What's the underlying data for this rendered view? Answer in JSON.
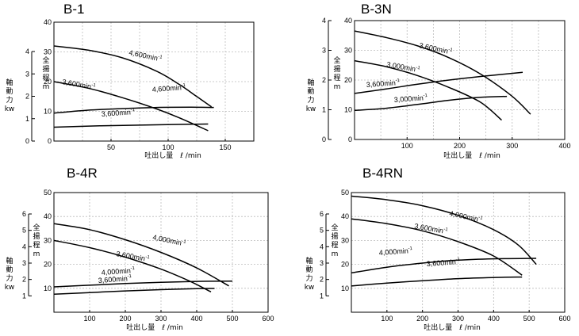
{
  "charts": [
    {
      "title": "B-1",
      "xlabel": "吐出し量　ℓ /min",
      "ylabel_head": [
        "全",
        "揚",
        "程",
        "m"
      ],
      "ylabel_power": [
        "軸",
        "動",
        "力",
        "kw"
      ],
      "x_ticks": [
        "50",
        "100",
        "150"
      ],
      "y_ticks": [
        "0",
        "10",
        "20",
        "30",
        "40"
      ],
      "p_ticks": [
        "0",
        "1",
        "2",
        "3",
        "4"
      ],
      "curves": [
        {
          "label": "4,600min",
          "sup": "-1"
        },
        {
          "label": "3,600min",
          "sup": "-1"
        },
        {
          "label": "4,600min",
          "sup": "-1"
        },
        {
          "label": "3,600min",
          "sup": "-1"
        }
      ]
    },
    {
      "title": "B-3N",
      "xlabel": "吐出し量　ℓ /min",
      "ylabel_head": [
        "全",
        "揚",
        "程",
        "m"
      ],
      "ylabel_power": [
        "軸",
        "動",
        "力",
        "kw"
      ],
      "x_ticks": [
        "100",
        "200",
        "300",
        "400"
      ],
      "y_ticks": [
        "0",
        "10",
        "20",
        "30",
        "40"
      ],
      "p_ticks": [
        "0",
        "1",
        "2",
        "3",
        "4"
      ],
      "curves": [
        {
          "label": "3,600min",
          "sup": "-1"
        },
        {
          "label": "3,000min",
          "sup": "-1"
        },
        {
          "label": "3,600min",
          "sup": "-1"
        },
        {
          "label": "3,000min",
          "sup": "-1"
        }
      ]
    },
    {
      "title": "B-4R",
      "xlabel": "吐出し量　ℓ /min",
      "ylabel_head": [
        "全",
        "揚",
        "程",
        "m"
      ],
      "ylabel_power": [
        "軸",
        "動",
        "力",
        "kw"
      ],
      "x_ticks": [
        "100",
        "200",
        "300",
        "400",
        "500",
        "600"
      ],
      "y_ticks": [
        "10",
        "20",
        "30",
        "40",
        "50"
      ],
      "p_ticks": [
        "1",
        "2",
        "3",
        "4",
        "5",
        "6"
      ],
      "curves": [
        {
          "label": "4,000min",
          "sup": "-1"
        },
        {
          "label": "3,600min",
          "sup": "-1"
        },
        {
          "label": "4,000min",
          "sup": "-1"
        },
        {
          "label": "3,600min",
          "sup": "-1"
        }
      ]
    },
    {
      "title": "B-4RN",
      "xlabel": "吐出し量　ℓ /min",
      "ylabel_head": [
        "全",
        "揚",
        "程",
        "m"
      ],
      "ylabel_power": [
        "軸",
        "動",
        "力",
        "kw"
      ],
      "x_ticks": [
        "100",
        "200",
        "300",
        "400",
        "500",
        "600"
      ],
      "y_ticks": [
        "10",
        "20",
        "30",
        "40",
        "50"
      ],
      "p_ticks": [
        "1",
        "2",
        "3",
        "4",
        "5",
        "6"
      ],
      "curves": [
        {
          "label": "4,000min",
          "sup": "-1"
        },
        {
          "label": "3,600min",
          "sup": "-1"
        },
        {
          "label": "4,000min",
          "sup": "-1"
        },
        {
          "label": "3,600min",
          "sup": "-1"
        }
      ]
    }
  ],
  "chart_data": [
    {
      "type": "line",
      "title": "B-1",
      "xlabel": "吐出し量　ℓ /min",
      "ylabel": "全揚程 m / 軸動力 kw",
      "xlim": [
        0,
        175
      ],
      "ylim": [
        0,
        40
      ],
      "ylim_power": [
        0,
        4
      ],
      "grid": true,
      "series": [
        {
          "name": "4,600min-1",
          "axis": "head",
          "x": [
            0,
            30,
            60,
            90,
            110,
            125,
            138
          ],
          "y": [
            32,
            30.6,
            28,
            23.5,
            19,
            15,
            11.5
          ]
        },
        {
          "name": "3,600min-1",
          "axis": "head",
          "x": [
            0,
            30,
            60,
            90,
            110,
            135
          ],
          "y": [
            20,
            17.8,
            14.6,
            10.8,
            7.8,
            3.5
          ]
        },
        {
          "name": "4,600min-1",
          "axis": "power",
          "x": [
            0,
            30,
            60,
            90,
            120,
            140
          ],
          "y": [
            1.25,
            1.38,
            1.45,
            1.5,
            1.51,
            1.5
          ]
        },
        {
          "name": "3,600min-1",
          "axis": "power",
          "x": [
            0,
            40,
            80,
            120,
            135
          ],
          "y": [
            0.62,
            0.68,
            0.72,
            0.75,
            0.76
          ]
        }
      ]
    },
    {
      "type": "line",
      "title": "B-3N",
      "xlabel": "吐出し量　ℓ /min",
      "ylabel": "全揚程 m / 軸動力 kw",
      "xlim": [
        0,
        400
      ],
      "ylim": [
        0,
        40
      ],
      "ylim_power": [
        0,
        4
      ],
      "grid": true,
      "series": [
        {
          "name": "3,600min-1",
          "axis": "head",
          "x": [
            0,
            60,
            120,
            180,
            240,
            300,
            335
          ],
          "y": [
            36.5,
            34.3,
            31.5,
            27.5,
            22,
            14.5,
            8.5
          ]
        },
        {
          "name": "3,000min-1",
          "axis": "head",
          "x": [
            0,
            60,
            120,
            180,
            240,
            280
          ],
          "y": [
            26.5,
            24.5,
            21.5,
            17.5,
            12.5,
            6.5
          ]
        },
        {
          "name": "3,600min-1",
          "axis": "power",
          "x": [
            0,
            60,
            120,
            180,
            240,
            320
          ],
          "y": [
            1.55,
            1.7,
            1.86,
            2.0,
            2.12,
            2.26
          ]
        },
        {
          "name": "3,000min-1",
          "axis": "power",
          "x": [
            0,
            60,
            120,
            180,
            240,
            290
          ],
          "y": [
            0.98,
            1.05,
            1.18,
            1.32,
            1.42,
            1.45
          ]
        }
      ]
    },
    {
      "type": "line",
      "title": "B-4R",
      "xlabel": "吐出し量　ℓ /min",
      "ylabel": "全揚程 m / 軸動力 kw",
      "xlim": [
        0,
        600
      ],
      "ylim": [
        0,
        50
      ],
      "ylim_power": [
        0,
        6
      ],
      "grid": true,
      "series": [
        {
          "name": "4,000min-1",
          "axis": "head",
          "x": [
            0,
            100,
            200,
            300,
            400,
            490
          ],
          "y": [
            37,
            34.5,
            30.3,
            25,
            18.5,
            11
          ]
        },
        {
          "name": "3,600min-1",
          "axis": "head",
          "x": [
            0,
            100,
            200,
            300,
            380,
            440
          ],
          "y": [
            30,
            27,
            23,
            18,
            13,
            8.5
          ]
        },
        {
          "name": "4,000min-1",
          "axis": "power",
          "x": [
            0,
            100,
            200,
            300,
            400,
            500
          ],
          "y": [
            1.55,
            1.65,
            1.75,
            1.83,
            1.88,
            1.9
          ]
        },
        {
          "name": "3,600min-1",
          "axis": "power",
          "x": [
            0,
            100,
            200,
            300,
            400,
            450
          ],
          "y": [
            1.1,
            1.2,
            1.3,
            1.38,
            1.44,
            1.45
          ]
        }
      ]
    },
    {
      "type": "line",
      "title": "B-4RN",
      "xlabel": "吐出し量　ℓ /min",
      "ylabel": "全揚程 m / 軸動力 kw",
      "xlim": [
        0,
        600
      ],
      "ylim": [
        0,
        50
      ],
      "ylim_power": [
        0,
        6
      ],
      "grid": true,
      "series": [
        {
          "name": "4,000min-1",
          "axis": "head",
          "x": [
            0,
            100,
            200,
            300,
            400,
            470,
            520
          ],
          "y": [
            48.5,
            47,
            44.5,
            40.5,
            34.5,
            28,
            20
          ]
        },
        {
          "name": "3,600min-1",
          "axis": "head",
          "x": [
            0,
            100,
            200,
            300,
            400,
            480
          ],
          "y": [
            39,
            37,
            34,
            29.5,
            23.5,
            15.5
          ]
        },
        {
          "name": "4,000min-1",
          "axis": "power",
          "x": [
            0,
            100,
            200,
            300,
            400,
            520
          ],
          "y": [
            2.4,
            2.75,
            3.0,
            3.18,
            3.26,
            3.29
          ]
        },
        {
          "name": "3,600min-1",
          "axis": "power",
          "x": [
            0,
            100,
            200,
            300,
            400,
            480
          ],
          "y": [
            1.6,
            1.78,
            1.92,
            2.05,
            2.12,
            2.15
          ]
        }
      ]
    }
  ]
}
